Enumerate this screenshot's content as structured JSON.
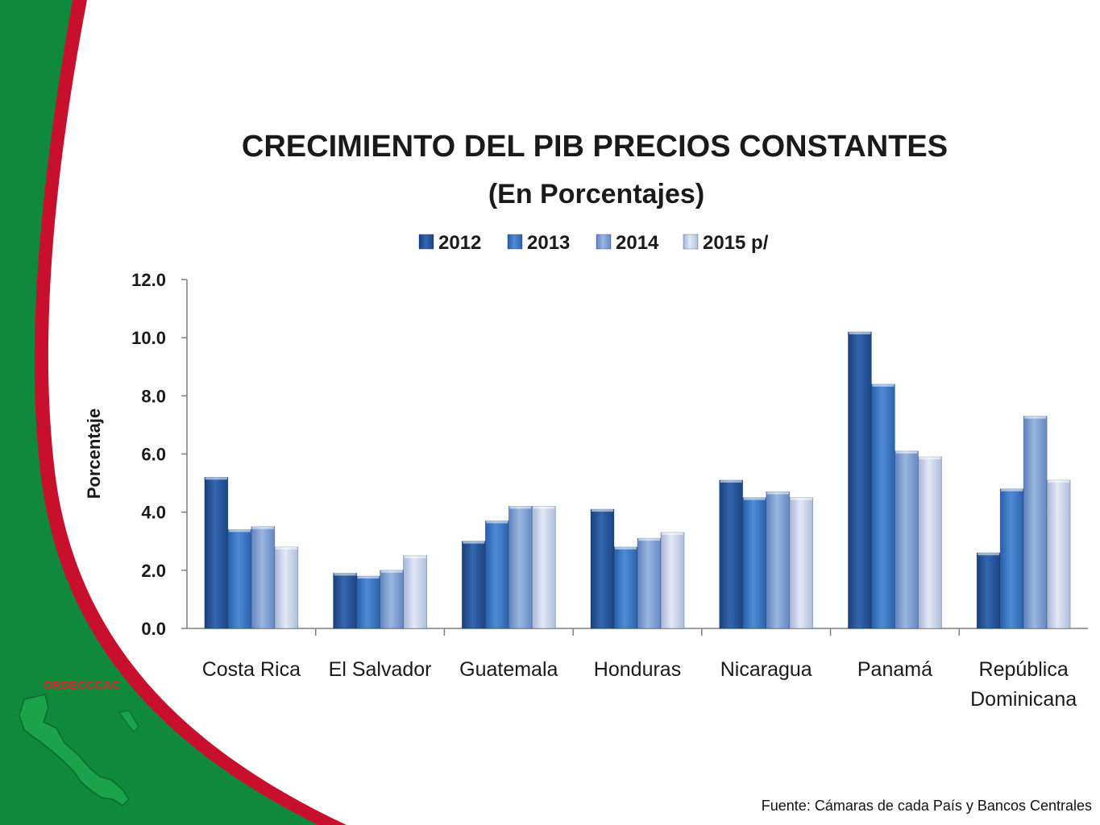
{
  "branding": {
    "org_name": "ORDECCCAC"
  },
  "source_note": "Fuente: Cámaras de cada País y Bancos Centrales",
  "colors": {
    "slide_green": "#0f8a3c",
    "slide_red": "#c8102e",
    "series": [
      "#2a5aa0",
      "#3f79c6",
      "#7e9fd2",
      "#c5d2ea"
    ]
  },
  "chart_data": {
    "type": "bar",
    "title": "CRECIMIENTO DEL PIB PRECIOS CONSTANTES",
    "subtitle": "(En Porcentajes)",
    "xlabel": "",
    "ylabel": "Porcentaje",
    "ylim": [
      0,
      12
    ],
    "yticks": [
      "0.0",
      "2.0",
      "4.0",
      "6.0",
      "8.0",
      "10.0",
      "12.0"
    ],
    "legend_position": "top",
    "grid": false,
    "categories": [
      "Costa Rica",
      "El Salvador",
      "Guatemala",
      "Honduras",
      "Nicaragua",
      "Panamá",
      "República Dominicana"
    ],
    "series": [
      {
        "name": "2012",
        "values": [
          5.2,
          1.9,
          3.0,
          4.1,
          5.1,
          10.2,
          2.6
        ]
      },
      {
        "name": "2013",
        "values": [
          3.4,
          1.8,
          3.7,
          2.8,
          4.5,
          8.4,
          4.8
        ]
      },
      {
        "name": "2014",
        "values": [
          3.5,
          2.0,
          4.2,
          3.1,
          4.7,
          6.1,
          7.3
        ]
      },
      {
        "name": "2015 p/",
        "values": [
          2.8,
          2.5,
          4.2,
          3.3,
          4.5,
          5.9,
          5.1
        ]
      }
    ]
  }
}
